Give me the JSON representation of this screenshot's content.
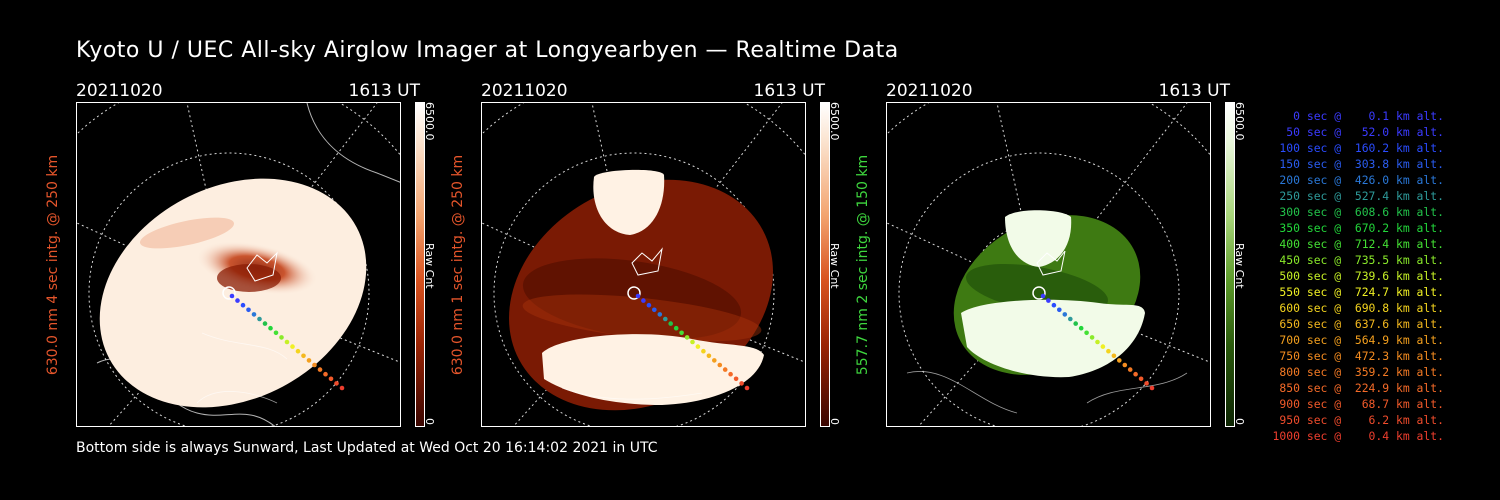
{
  "title": "Kyoto U / UEC All-sky Airglow Imager at Longyearbyen — Realtime Data",
  "footer": "Bottom side is always Sunward, Last Updated at Wed Oct 20 16:14:02 2021 in UTC",
  "panels": [
    {
      "date": "20211020",
      "time": "1613 UT",
      "ylabel": "630.0 nm 4 sec intg. @ 250 km",
      "ylabel_color": "#e4552b",
      "cbar_max": "6500.0",
      "cbar_label": "Raw Cnt",
      "cbar_min": "0",
      "colors": {
        "bg": "#fdeee0",
        "mid": "#e46a38",
        "dark": "#8a1c04",
        "black": "#3a0500"
      }
    },
    {
      "date": "20211020",
      "time": "1613 UT",
      "ylabel": "630.0 nm 1 sec intg. @ 250 km",
      "ylabel_color": "#e4552b",
      "cbar_max": "6500.0",
      "cbar_label": "Raw Cnt",
      "cbar_min": "0",
      "colors": {
        "bg": "#7a1a04",
        "mid": "#a8320c",
        "dark": "#4a0c00",
        "light": "#fff2e4"
      }
    },
    {
      "date": "20211020",
      "time": "1613 UT",
      "ylabel": "557.7 nm 2 sec intg. @ 150 km",
      "ylabel_color": "#3ed63e",
      "cbar_max": "6500.0",
      "cbar_label": "Raw Cnt",
      "cbar_min": "0",
      "colors": {
        "bg": "#3e7a12",
        "mid": "#6aa634",
        "dark": "#1d4a08",
        "light": "#f2fbe8"
      }
    }
  ],
  "legend": [
    {
      "text": "0 sec @    0.1 km alt.",
      "color": "#3b3bff"
    },
    {
      "text": "50 sec @   52.0 km alt.",
      "color": "#3b3bff"
    },
    {
      "text": "100 sec @  160.2 km alt.",
      "color": "#2a4cff"
    },
    {
      "text": "150 sec @  303.8 km alt.",
      "color": "#2a5cf0"
    },
    {
      "text": "200 sec @  426.0 km alt.",
      "color": "#2a78d8"
    },
    {
      "text": "250 sec @  527.4 km alt.",
      "color": "#2e9a9a"
    },
    {
      "text": "300 sec @  608.6 km alt.",
      "color": "#22c24a"
    },
    {
      "text": "350 sec @  670.2 km alt.",
      "color": "#22d63a"
    },
    {
      "text": "400 sec @  712.4 km alt.",
      "color": "#44e034"
    },
    {
      "text": "450 sec @  735.5 km alt.",
      "color": "#8aea2a"
    },
    {
      "text": "500 sec @  739.6 km alt.",
      "color": "#c6f026"
    },
    {
      "text": "550 sec @  724.7 km alt.",
      "color": "#f0f024"
    },
    {
      "text": "600 sec @  690.8 km alt.",
      "color": "#f4d41e"
    },
    {
      "text": "650 sec @  637.6 km alt.",
      "color": "#f4b81e"
    },
    {
      "text": "700 sec @  564.9 km alt.",
      "color": "#f4a01e"
    },
    {
      "text": "750 sec @  472.3 km alt.",
      "color": "#f48c20"
    },
    {
      "text": "800 sec @  359.2 km alt.",
      "color": "#f47a24"
    },
    {
      "text": "850 sec @  224.9 km alt.",
      "color": "#f46a28"
    },
    {
      "text": "900 sec @   68.7 km alt.",
      "color": "#f25a2a"
    },
    {
      "text": "950 sec @    6.2 km alt.",
      "color": "#f04c2c"
    },
    {
      "text": "1000 sec @    0.4 km alt.",
      "color": "#ee3e2e"
    }
  ]
}
